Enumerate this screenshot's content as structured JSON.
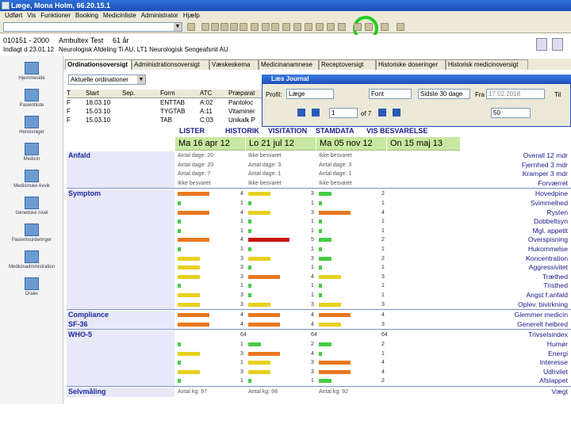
{
  "window": {
    "title": "Læge, Mona Holm, 66.20.15.1"
  },
  "menu": [
    "Udført",
    "Vis",
    "Funktioner",
    "Booking",
    "Medicinliste",
    "Administrator",
    "Hjælp"
  ],
  "patient": {
    "id": "010151 - 2000",
    "line1_mid": "Ambultex Test",
    "age": "61 år",
    "line2_left": "Indlagt d 23.01.12",
    "line2_mid": "Neurologisk Afdeling Ti AU, LT1 Neurologisk Sengeafsnit AU"
  },
  "nav": [
    "Hjemmeside",
    "Pasientliste",
    "Henvisniger",
    "Medicin",
    "Medisinske Avvik",
    "Genetiske nivel",
    "Pasientvurderinger",
    "Medicinadministration",
    "Oraler"
  ],
  "tabs": [
    "Ordinationsoversigt",
    "Administrationsoversigt",
    "Væskeskema",
    "Medicinanamnese",
    "Receptoversigt",
    "Historiske doseringer",
    "Historisk medicinoversigt"
  ],
  "ordination": {
    "filter": "Aktuelle ordinationer",
    "headers": [
      "T",
      "Start",
      "Sep.",
      "Form",
      "ATC",
      "Præparat"
    ],
    "rows": [
      [
        "F",
        "18.03.10",
        "",
        "ENTTAB",
        "A:02",
        "Pantoloc"
      ],
      [
        "F",
        "15.03.10",
        "",
        "TYGTAB",
        "A:11",
        "Vitaminer"
      ],
      [
        "F",
        "15.03.10",
        "",
        "TAB",
        "C:03",
        "Unikalk P"
      ]
    ]
  },
  "journal": {
    "title": "Læs Journal",
    "profile_label": "Profil:",
    "profile_value": "Læge",
    "font_value": "Font",
    "period_value": "Sidste 30 dage",
    "fra_label": "Fra",
    "fra_value": "17.02.2018",
    "til_label": "Til",
    "page_value": "1",
    "page_of": "of 7",
    "zoom_value": "50"
  },
  "vislinks": [
    "LISTER",
    "HISTORIK",
    "VISITATION",
    "STAMDATA",
    "VIS BESVARELSE"
  ],
  "dates": [
    "Ma 16 apr 12",
    "Lo 21 jul 12",
    "Ma 05 nov 12",
    "On 15 maj 13"
  ],
  "sections": {
    "anfald": {
      "title": "Anfald",
      "rows": [
        {
          "label": "Overall 12 mdr",
          "v": [
            "Antal dage: 20",
            "Ikke besvaret",
            "Ikke besvaret"
          ]
        },
        {
          "label": "Fjernhed 3 mdr",
          "v": [
            "Antal dage: 20",
            "Antal dage: 3",
            "Antal dage: 3"
          ]
        },
        {
          "label": "Kramper 3 mdr",
          "v": [
            "Antal dage: 7",
            "Antal dage: 1",
            "Antal dage: 1"
          ]
        },
        {
          "label": "Forværret",
          "v": [
            "Ikke besvaret",
            "Ikke besvaret",
            "Ikke besvaret"
          ]
        }
      ]
    },
    "symptom": {
      "title": "Symptom",
      "rows": [
        {
          "label": "Hovedpine",
          "s": [
            4,
            3,
            2
          ],
          "c": [
            "o",
            "y",
            "g"
          ]
        },
        {
          "label": "Svimmelhed",
          "s": [
            1,
            1,
            1
          ],
          "c": [
            "g",
            "g",
            "g"
          ]
        },
        {
          "label": "Rysten",
          "s": [
            4,
            3,
            4
          ],
          "c": [
            "o",
            "y",
            "o"
          ]
        },
        {
          "label": "Dobbeltsyn",
          "s": [
            1,
            1,
            1
          ],
          "c": [
            "g",
            "g",
            "g"
          ]
        },
        {
          "label": "Mgl. appetit",
          "s": [
            1,
            1,
            1
          ],
          "c": [
            "g",
            "g",
            "g"
          ]
        },
        {
          "label": "Overspisning",
          "s": [
            4,
            5,
            2
          ],
          "c": [
            "o",
            "r",
            "g"
          ]
        },
        {
          "label": "Hukommelse",
          "s": [
            1,
            1,
            1
          ],
          "c": [
            "g",
            "g",
            "g"
          ]
        },
        {
          "label": "Koncentration",
          "s": [
            3,
            3,
            2
          ],
          "c": [
            "y",
            "y",
            "g"
          ]
        },
        {
          "label": "Aggressivitet",
          "s": [
            3,
            1,
            1
          ],
          "c": [
            "y",
            "g",
            "g"
          ]
        },
        {
          "label": "Træthed",
          "s": [
            3,
            4,
            3
          ],
          "c": [
            "y",
            "o",
            "y"
          ]
        },
        {
          "label": "Tristhed",
          "s": [
            1,
            1,
            1
          ],
          "c": [
            "g",
            "g",
            "g"
          ]
        },
        {
          "label": "Angst f.anfald",
          "s": [
            3,
            1,
            1
          ],
          "c": [
            "y",
            "g",
            "g"
          ]
        },
        {
          "label": "Oplev. bivirkning",
          "s": [
            3,
            3,
            3
          ],
          "c": [
            "y",
            "y",
            "y"
          ]
        }
      ]
    },
    "compliance": {
      "title": "Compliance",
      "label": "Glemmer medicin",
      "s": [
        4,
        4,
        4
      ],
      "c": [
        "o",
        "o",
        "o"
      ]
    },
    "sf36": {
      "title": "SF-36",
      "label": "Generelt helbred",
      "s": [
        4,
        4,
        3
      ],
      "c": [
        "o",
        "o",
        "y"
      ]
    },
    "who5": {
      "title": "WHO-5",
      "rows": [
        {
          "label": "Trivselsindex",
          "s": [
            64,
            64,
            64
          ],
          "c": [
            "",
            "",
            ""
          ]
        },
        {
          "label": "Humør",
          "s": [
            1,
            2,
            2
          ],
          "c": [
            "g",
            "g",
            "g"
          ]
        },
        {
          "label": "Energi",
          "s": [
            3,
            4,
            1
          ],
          "c": [
            "y",
            "o",
            "g"
          ]
        },
        {
          "label": "Interesse",
          "s": [
            1,
            3,
            4
          ],
          "c": [
            "g",
            "y",
            "o"
          ]
        },
        {
          "label": "Udhvilet",
          "s": [
            3,
            3,
            4
          ],
          "c": [
            "y",
            "y",
            "o"
          ]
        },
        {
          "label": "Afslappet",
          "s": [
            1,
            1,
            2
          ],
          "c": [
            "g",
            "g",
            "g"
          ]
        }
      ]
    },
    "selvmaling": {
      "title": "Selvmåling",
      "label": "Vægt",
      "v": [
        "Antal kg: 97",
        "Antal kg: 98",
        "Antal kg: 92"
      ]
    }
  },
  "colors": {
    "g": "#44cc44",
    "y": "#e8d020",
    "o": "#e87820",
    "r": "#cc1010"
  }
}
